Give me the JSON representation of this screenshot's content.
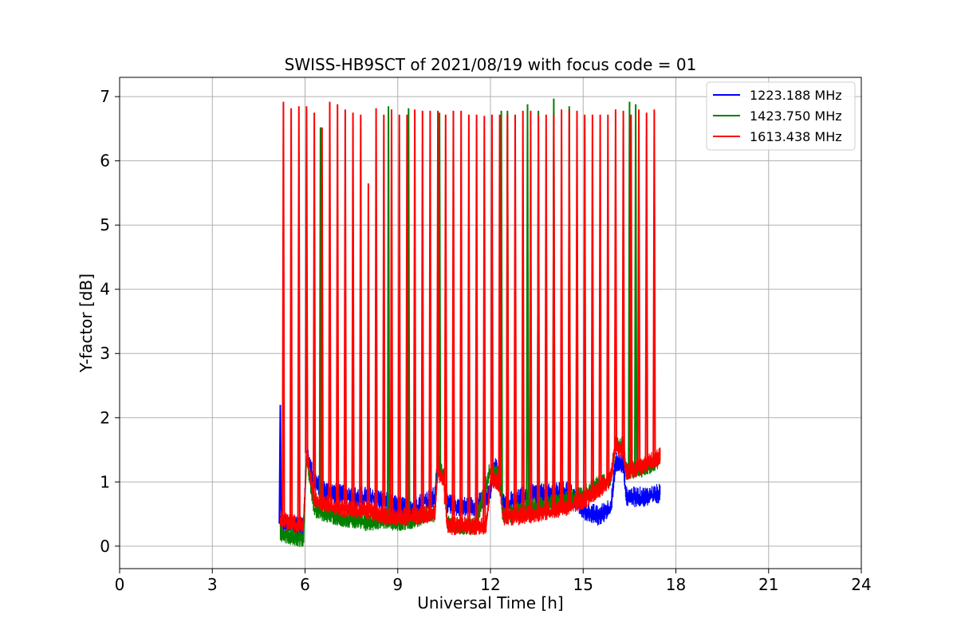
{
  "chart_data": {
    "type": "line",
    "title": "SWISS-HB9SCT of 2021/08/19 with focus code = 01",
    "xlabel": "Universal Time [h]",
    "ylabel": "Y-factor [dB]",
    "xlim": [
      0,
      24
    ],
    "ylim": [
      -0.35,
      7.3
    ],
    "xticks": [
      0,
      3,
      6,
      9,
      12,
      15,
      18,
      21,
      24
    ],
    "yticks": [
      0,
      1,
      2,
      3,
      4,
      5,
      6,
      7
    ],
    "grid": true,
    "legend_position": "top-right",
    "series": [
      {
        "name": "1223.188 MHz",
        "color": "#0000ff",
        "baseline": [
          [
            5.2,
            0.35
          ],
          [
            5.5,
            0.3
          ],
          [
            5.95,
            0.3
          ],
          [
            6.05,
            1.45
          ],
          [
            6.3,
            1.0
          ],
          [
            6.6,
            0.85
          ],
          [
            7.0,
            0.8
          ],
          [
            7.5,
            0.75
          ],
          [
            8.0,
            0.75
          ],
          [
            8.5,
            0.7
          ],
          [
            9.0,
            0.6
          ],
          [
            9.5,
            0.6
          ],
          [
            10.2,
            0.75
          ],
          [
            10.3,
            1.3
          ],
          [
            10.5,
            1.05
          ],
          [
            10.6,
            0.65
          ],
          [
            11.0,
            0.6
          ],
          [
            11.5,
            0.6
          ],
          [
            12.0,
            0.8
          ],
          [
            12.1,
            1.25
          ],
          [
            12.3,
            1.1
          ],
          [
            12.4,
            0.65
          ],
          [
            13.0,
            0.75
          ],
          [
            13.5,
            0.8
          ],
          [
            14.0,
            0.8
          ],
          [
            14.5,
            0.85
          ],
          [
            14.8,
            0.7
          ],
          [
            15.0,
            0.55
          ],
          [
            15.5,
            0.45
          ],
          [
            15.9,
            0.6
          ],
          [
            16.05,
            1.3
          ],
          [
            16.3,
            1.25
          ],
          [
            16.4,
            0.75
          ],
          [
            17.0,
            0.75
          ],
          [
            17.5,
            0.8
          ]
        ],
        "spikes": [
          [
            5.2,
            2.2
          ]
        ],
        "noise": 0.18
      },
      {
        "name": "1423.750 MHz",
        "color": "#008000",
        "baseline": [
          [
            5.2,
            0.2
          ],
          [
            5.5,
            0.15
          ],
          [
            5.95,
            0.1
          ],
          [
            6.05,
            1.4
          ],
          [
            6.3,
            0.55
          ],
          [
            7.0,
            0.45
          ],
          [
            7.5,
            0.4
          ],
          [
            8.0,
            0.35
          ],
          [
            8.5,
            0.4
          ],
          [
            9.0,
            0.35
          ],
          [
            9.5,
            0.4
          ],
          [
            10.2,
            0.5
          ],
          [
            10.3,
            1.3
          ],
          [
            10.5,
            1.05
          ],
          [
            10.6,
            0.35
          ],
          [
            11.0,
            0.3
          ],
          [
            11.5,
            0.3
          ],
          [
            12.0,
            1.2
          ],
          [
            12.3,
            1.1
          ],
          [
            12.4,
            0.45
          ],
          [
            13.0,
            0.55
          ],
          [
            13.5,
            0.6
          ],
          [
            14.0,
            0.65
          ],
          [
            14.5,
            0.7
          ],
          [
            15.0,
            0.8
          ],
          [
            15.5,
            0.95
          ],
          [
            15.9,
            1.05
          ],
          [
            16.05,
            1.6
          ],
          [
            16.3,
            1.55
          ],
          [
            16.4,
            1.15
          ],
          [
            17.0,
            1.2
          ],
          [
            17.5,
            1.35
          ]
        ],
        "spikes": [
          [
            6.5,
            6.52
          ],
          [
            8.7,
            6.85
          ],
          [
            9.35,
            6.82
          ],
          [
            10.35,
            6.75
          ],
          [
            12.35,
            6.78
          ],
          [
            12.55,
            6.78
          ],
          [
            13.2,
            6.88
          ],
          [
            13.55,
            6.78
          ],
          [
            14.05,
            6.97
          ],
          [
            14.55,
            6.85
          ],
          [
            16.5,
            6.92
          ],
          [
            16.7,
            6.88
          ]
        ],
        "noise": 0.16
      },
      {
        "name": "1613.438 MHz",
        "color": "#ff0000",
        "baseline": [
          [
            5.2,
            0.4
          ],
          [
            5.5,
            0.35
          ],
          [
            5.95,
            0.3
          ],
          [
            6.05,
            1.45
          ],
          [
            6.3,
            0.7
          ],
          [
            7.0,
            0.6
          ],
          [
            7.5,
            0.55
          ],
          [
            8.0,
            0.55
          ],
          [
            8.5,
            0.45
          ],
          [
            9.0,
            0.45
          ],
          [
            9.5,
            0.45
          ],
          [
            10.2,
            0.5
          ],
          [
            10.3,
            1.15
          ],
          [
            10.5,
            1.0
          ],
          [
            10.6,
            0.3
          ],
          [
            11.0,
            0.3
          ],
          [
            11.5,
            0.3
          ],
          [
            11.85,
            0.3
          ],
          [
            11.9,
            0.45
          ],
          [
            12.0,
            1.05
          ],
          [
            12.3,
            0.95
          ],
          [
            12.4,
            0.45
          ],
          [
            13.0,
            0.45
          ],
          [
            13.5,
            0.5
          ],
          [
            14.0,
            0.55
          ],
          [
            14.5,
            0.6
          ],
          [
            15.0,
            0.7
          ],
          [
            15.5,
            0.85
          ],
          [
            15.9,
            1.05
          ],
          [
            16.05,
            1.55
          ],
          [
            16.3,
            1.45
          ],
          [
            16.4,
            1.15
          ],
          [
            17.0,
            1.25
          ],
          [
            17.5,
            1.4
          ]
        ],
        "spikes": [
          [
            5.3,
            6.92
          ],
          [
            5.55,
            6.82
          ],
          [
            5.8,
            6.85
          ],
          [
            6.05,
            6.85
          ],
          [
            6.3,
            6.75
          ],
          [
            6.55,
            6.52
          ],
          [
            6.8,
            6.92
          ],
          [
            7.05,
            6.88
          ],
          [
            7.3,
            6.8
          ],
          [
            7.55,
            6.75
          ],
          [
            7.8,
            6.72
          ],
          [
            8.05,
            5.65
          ],
          [
            8.3,
            6.82
          ],
          [
            8.55,
            6.72
          ],
          [
            8.8,
            6.8
          ],
          [
            9.05,
            6.72
          ],
          [
            9.3,
            6.72
          ],
          [
            9.55,
            6.8
          ],
          [
            9.8,
            6.78
          ],
          [
            10.05,
            6.78
          ],
          [
            10.3,
            6.78
          ],
          [
            10.55,
            6.72
          ],
          [
            10.8,
            6.78
          ],
          [
            11.05,
            6.78
          ],
          [
            11.3,
            6.72
          ],
          [
            11.55,
            6.72
          ],
          [
            11.8,
            6.7
          ],
          [
            12.05,
            6.72
          ],
          [
            12.3,
            6.72
          ],
          [
            12.55,
            6.72
          ],
          [
            12.8,
            6.72
          ],
          [
            13.05,
            6.78
          ],
          [
            13.3,
            6.78
          ],
          [
            13.55,
            6.72
          ],
          [
            13.8,
            6.72
          ],
          [
            14.05,
            6.72
          ],
          [
            14.3,
            6.8
          ],
          [
            14.55,
            6.8
          ],
          [
            14.8,
            6.78
          ],
          [
            15.05,
            6.72
          ],
          [
            15.3,
            6.72
          ],
          [
            15.55,
            6.72
          ],
          [
            15.8,
            6.72
          ],
          [
            16.05,
            6.8
          ],
          [
            16.3,
            6.78
          ],
          [
            16.55,
            6.72
          ],
          [
            16.8,
            6.8
          ],
          [
            17.05,
            6.75
          ],
          [
            17.3,
            6.8
          ]
        ],
        "noise": 0.16
      }
    ]
  }
}
